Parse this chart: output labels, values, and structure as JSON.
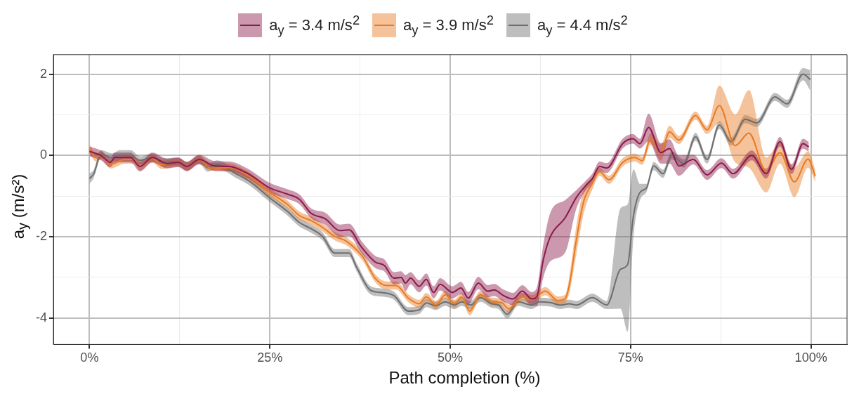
{
  "chart_data": {
    "type": "line",
    "xlabel": "Path completion (%)",
    "ylabel": "a$_{y}$ (m/s²)",
    "xlim": [
      -5,
      105
    ],
    "ylim": [
      -4.65,
      2.48
    ],
    "xticks": [
      {
        "value": 0,
        "label": "0%"
      },
      {
        "value": 12.5,
        "label": null
      },
      {
        "value": 25,
        "label": "25%"
      },
      {
        "value": 37.5,
        "label": null
      },
      {
        "value": 50,
        "label": "50%"
      },
      {
        "value": 62.5,
        "label": null
      },
      {
        "value": 75,
        "label": "75%"
      },
      {
        "value": 87.5,
        "label": null
      },
      {
        "value": 100,
        "label": "100%"
      }
    ],
    "yticks": [
      -4,
      {
        "value": -3,
        "label": null
      },
      -2,
      {
        "value": -1,
        "label": null
      },
      0,
      {
        "value": 1,
        "label": null
      },
      2
    ],
    "grid": true,
    "legend": "top",
    "series": [
      {
        "name": "a$_{y}$ = 3.4 m/s$^{2}$",
        "color": "#8b1a4a",
        "x": [
          0,
          1.6,
          2.9,
          3.5,
          5.7,
          7,
          8.7,
          10.8,
          12.3,
          13.5,
          15.2,
          17.4,
          19.4,
          22,
          24.9,
          27.4,
          29.1,
          30.7,
          32.7,
          34.7,
          36,
          37.6,
          39.6,
          40.9,
          42.2,
          43.2,
          43.8,
          44.5,
          45.7,
          46.7,
          47.7,
          48.6,
          50.3,
          51.5,
          52.5,
          53.9,
          55.2,
          56.1,
          57.4,
          58.7,
          60,
          61.3,
          62,
          62.9,
          63.9,
          65.9,
          67.5,
          68.8,
          69.7,
          70.7,
          71.7,
          73.9,
          75.3,
          76.3,
          77.5,
          79.2,
          80.4,
          81.7,
          83.7,
          85.6,
          87.6,
          89.2,
          91.8,
          93.8,
          95.7,
          97.3,
          98.9,
          99.7
        ],
        "values": [
          0.1,
          0,
          -0.17,
          -0.05,
          -0.05,
          -0.27,
          -0.05,
          -0.2,
          -0.17,
          -0.27,
          -0.1,
          -0.26,
          -0.27,
          -0.45,
          -0.79,
          -0.95,
          -1.08,
          -1.42,
          -1.56,
          -1.85,
          -1.83,
          -2.23,
          -2.62,
          -2.71,
          -3.02,
          -3.0,
          -3.14,
          -3.02,
          -3.22,
          -3.05,
          -3.37,
          -3.17,
          -3.37,
          -3.26,
          -3.51,
          -3.14,
          -3.34,
          -3.31,
          -3.45,
          -3.53,
          -3.34,
          -3.53,
          -3.48,
          -2.57,
          -1.99,
          -1.54,
          -1.03,
          -0.74,
          -0.57,
          -0.27,
          -0.31,
          0.29,
          0.41,
          0.29,
          0.69,
          0.07,
          0.17,
          -0.26,
          -0.1,
          -0.48,
          -0.19,
          -0.45,
          0,
          -0.45,
          0.34,
          -0.34,
          0.29,
          0.21
        ],
        "lower": [
          -0.02,
          -0.12,
          -0.29,
          -0.17,
          -0.17,
          -0.39,
          -0.17,
          -0.32,
          -0.29,
          -0.39,
          -0.22,
          -0.38,
          -0.39,
          -0.57,
          -0.91,
          -1.07,
          -1.2,
          -1.54,
          -1.71,
          -2.0,
          -1.98,
          -2.38,
          -2.77,
          -2.86,
          -3.17,
          -3.15,
          -3.34,
          -3.17,
          -3.37,
          -3.2,
          -3.52,
          -3.32,
          -3.52,
          -3.41,
          -3.66,
          -3.29,
          -3.49,
          -3.46,
          -3.6,
          -3.68,
          -3.49,
          -3.7,
          -3.7,
          -3.0,
          -2.6,
          -2.4,
          -1.3,
          -0.86,
          -0.69,
          -0.39,
          -0.43,
          0.17,
          0.29,
          0.17,
          0.35,
          -0.2,
          -0.2,
          -0.5,
          -0.22,
          -0.6,
          -0.31,
          -0.57,
          -0.12,
          -0.57,
          0.22,
          -0.46,
          0.17,
          0.09
        ],
        "upper": [
          0.22,
          0.12,
          -0.05,
          0.07,
          0.07,
          -0.15,
          0.07,
          -0.08,
          -0.05,
          -0.15,
          0.02,
          -0.14,
          -0.15,
          -0.33,
          -0.67,
          -0.83,
          -0.96,
          -1.3,
          -1.41,
          -1.7,
          -1.68,
          -2.08,
          -2.47,
          -2.56,
          -2.87,
          -2.85,
          -2.94,
          -2.87,
          -3.07,
          -2.9,
          -3.22,
          -3.02,
          -3.22,
          -3.11,
          -3.36,
          -2.99,
          -3.19,
          -3.16,
          -3.3,
          -3.38,
          -3.19,
          -3.36,
          -3.25,
          -2.2,
          -1.4,
          -1.1,
          -0.85,
          -0.62,
          -0.45,
          -0.15,
          -0.19,
          0.41,
          0.53,
          0.41,
          1.03,
          0.3,
          0.4,
          0,
          0.02,
          -0.36,
          -0.07,
          -0.33,
          0.12,
          -0.33,
          0.46,
          -0.22,
          0.41,
          0.33
        ]
      },
      {
        "name": "a$_{y}$ = 3.9 m/s$^{2}$",
        "color": "#e87b22",
        "x": [
          0,
          0.9,
          1.6,
          2.9,
          4.9,
          6.2,
          7,
          8.7,
          10,
          12.3,
          13.5,
          15.2,
          16.7,
          19.4,
          22,
          24.9,
          27.4,
          29.1,
          30.7,
          32.3,
          34,
          35.6,
          37.9,
          39.6,
          41.2,
          42.5,
          44.2,
          45.7,
          46.7,
          48,
          49.3,
          50.6,
          51.6,
          52.7,
          54.2,
          55.8,
          57.1,
          58.1,
          60,
          61.3,
          63.2,
          64.9,
          65.9,
          66.5,
          67.5,
          68.5,
          69.7,
          70.7,
          72,
          73.9,
          75.6,
          76.6,
          77.8,
          79.2,
          80.4,
          81.7,
          84,
          85.6,
          87.3,
          89.5,
          91.4,
          93.8,
          95.7,
          97.7,
          99.6,
          100.6
        ],
        "values": [
          0.17,
          -0.05,
          0,
          -0.22,
          -0.1,
          -0.1,
          -0.27,
          -0.07,
          -0.23,
          -0.17,
          -0.27,
          -0.1,
          -0.31,
          -0.3,
          -0.5,
          -0.9,
          -1.2,
          -1.48,
          -1.6,
          -1.77,
          -1.99,
          -2.11,
          -2.5,
          -3.02,
          -3.2,
          -3.2,
          -3.51,
          -3.65,
          -3.48,
          -3.68,
          -3.43,
          -3.65,
          -3.48,
          -3.83,
          -3.43,
          -3.6,
          -3.62,
          -3.77,
          -3.48,
          -3.53,
          -3.34,
          -3.57,
          -3.53,
          -3.2,
          -2.06,
          -1.13,
          -0.69,
          -0.4,
          -0.6,
          -0.17,
          -0.05,
          -0.13,
          0.41,
          0.07,
          0.58,
          0.38,
          0.98,
          0.63,
          1.23,
          0.24,
          0.55,
          -0.39,
          0.07,
          -0.65,
          -0.09,
          -0.51
        ],
        "lower": [
          0.07,
          -0.15,
          -0.1,
          -0.32,
          -0.2,
          -0.2,
          -0.37,
          -0.17,
          -0.33,
          -0.27,
          -0.37,
          -0.2,
          -0.37,
          -0.4,
          -0.6,
          -1.0,
          -1.3,
          -1.58,
          -1.7,
          -1.87,
          -2.09,
          -2.21,
          -2.6,
          -3.12,
          -3.3,
          -3.3,
          -3.61,
          -3.75,
          -3.58,
          -3.78,
          -3.53,
          -3.75,
          -3.58,
          -3.93,
          -3.53,
          -3.7,
          -3.72,
          -3.87,
          -3.58,
          -3.63,
          -3.44,
          -3.67,
          -3.63,
          -3.4,
          -2.41,
          -1.43,
          -0.84,
          -0.5,
          -0.7,
          -0.27,
          -0.15,
          -0.23,
          0.26,
          -0.13,
          0.43,
          0.28,
          0.88,
          0.53,
          0.8,
          -0.17,
          -0.3,
          -0.91,
          -0.2,
          -1.03,
          -0.3,
          -0.65
        ],
        "upper": [
          0.27,
          0.05,
          0.1,
          -0.12,
          0,
          0,
          -0.17,
          0.03,
          -0.13,
          -0.07,
          -0.17,
          0,
          -0.17,
          -0.2,
          -0.4,
          -0.8,
          -1.1,
          -1.38,
          -1.5,
          -1.67,
          -1.89,
          -2.01,
          -2.4,
          -2.92,
          -3.1,
          -3.1,
          -3.41,
          -3.55,
          -3.38,
          -3.58,
          -3.33,
          -3.55,
          -3.38,
          -3.73,
          -3.33,
          -3.5,
          -3.52,
          -3.67,
          -3.38,
          -3.43,
          -3.24,
          -3.47,
          -3.43,
          -3.0,
          -1.71,
          -0.83,
          -0.54,
          -0.3,
          -0.5,
          -0.07,
          0.05,
          -0.03,
          0.56,
          0.27,
          0.73,
          0.48,
          1.08,
          0.73,
          1.72,
          1.01,
          1.61,
          -0.05,
          0.3,
          -0.3,
          0.1,
          -0.35
        ]
      },
      {
        "name": "a$_{y}$ = 4.4 m/s$^{2}$",
        "color": "#6e6e6e",
        "x": [
          0,
          0.6,
          1.6,
          3.2,
          4.2,
          5.7,
          7,
          8.7,
          10.3,
          12.3,
          13.5,
          15.2,
          16.4,
          17.7,
          20.3,
          22.3,
          24.9,
          27.4,
          29.1,
          30.7,
          32.3,
          34,
          36,
          37,
          38.9,
          40.3,
          42.2,
          44.2,
          45.7,
          46.7,
          48,
          49.3,
          50.6,
          51.6,
          52.8,
          54.2,
          55.8,
          56.7,
          57.9,
          59.4,
          61.3,
          62.3,
          63.9,
          65.2,
          66.5,
          67.5,
          69.7,
          71.7,
          73.6,
          74.6,
          75.4,
          76.3,
          77.2,
          78.2,
          79.5,
          80.7,
          82.4,
          84,
          85.6,
          87.3,
          88.9,
          90.9,
          92.5,
          95,
          96.7,
          98.9,
          99.9
        ],
        "values": [
          -0.57,
          -0.45,
          0.03,
          -0.05,
          0,
          0,
          -0.12,
          -0.05,
          -0.17,
          -0.15,
          -0.27,
          -0.1,
          -0.3,
          -0.22,
          -0.45,
          -0.65,
          -1.03,
          -1.37,
          -1.65,
          -1.8,
          -1.99,
          -2.4,
          -2.4,
          -2.74,
          -3.31,
          -3.37,
          -3.45,
          -3.83,
          -3.8,
          -3.63,
          -3.7,
          -3.6,
          -3.68,
          -3.6,
          -3.68,
          -3.5,
          -3.65,
          -3.68,
          -3.91,
          -3.6,
          -3.68,
          -3.6,
          -3.62,
          -3.68,
          -3.65,
          -3.68,
          -3.5,
          -3.68,
          -2.8,
          -2.68,
          -1.48,
          -0.91,
          -0.8,
          -0.26,
          -0.45,
          0,
          -0.2,
          0.46,
          -0.1,
          0.75,
          0.34,
          0.89,
          0.8,
          1.44,
          1.27,
          2.0,
          1.87
        ],
        "lower": [
          -0.7,
          -0.55,
          -0.07,
          -0.15,
          -0.13,
          -0.13,
          -0.22,
          -0.15,
          -0.27,
          -0.25,
          -0.37,
          -0.2,
          -0.4,
          -0.32,
          -0.55,
          -0.75,
          -1.13,
          -1.47,
          -1.75,
          -1.9,
          -2.09,
          -2.5,
          -2.5,
          -2.84,
          -3.41,
          -3.47,
          -3.55,
          -3.93,
          -3.9,
          -3.73,
          -3.8,
          -3.7,
          -3.78,
          -3.7,
          -3.78,
          -3.6,
          -3.75,
          -3.78,
          -4.01,
          -3.7,
          -3.78,
          -3.7,
          -3.72,
          -3.78,
          -3.75,
          -3.78,
          -3.6,
          -3.78,
          -3.77,
          -4.34,
          -2.0,
          -1.1,
          -0.9,
          -0.36,
          -0.55,
          -0.1,
          -0.3,
          0.36,
          -0.2,
          0.65,
          0.24,
          0.79,
          0.7,
          1.34,
          1.17,
          1.85,
          1.6
        ],
        "upper": [
          -0.45,
          -0.35,
          0.13,
          0.05,
          0.13,
          0.13,
          -0.02,
          0.05,
          -0.07,
          -0.05,
          -0.17,
          0,
          -0.2,
          -0.12,
          -0.35,
          -0.55,
          -0.93,
          -1.27,
          -1.55,
          -1.7,
          -1.89,
          -2.3,
          -2.3,
          -2.64,
          -3.21,
          -3.27,
          -3.35,
          -3.73,
          -3.7,
          -3.53,
          -3.6,
          -3.5,
          -3.58,
          -3.5,
          -3.58,
          -3.4,
          -3.55,
          -3.58,
          -3.81,
          -3.5,
          -3.58,
          -3.5,
          -3.52,
          -3.58,
          -3.55,
          -3.58,
          -3.4,
          -3.58,
          -1.3,
          -1.2,
          -0.34,
          -0.7,
          -0.7,
          -0.16,
          -0.35,
          0.1,
          -0.1,
          0.56,
          0,
          0.85,
          0.44,
          0.99,
          0.9,
          1.54,
          1.37,
          2.15,
          2.1
        ]
      }
    ]
  }
}
